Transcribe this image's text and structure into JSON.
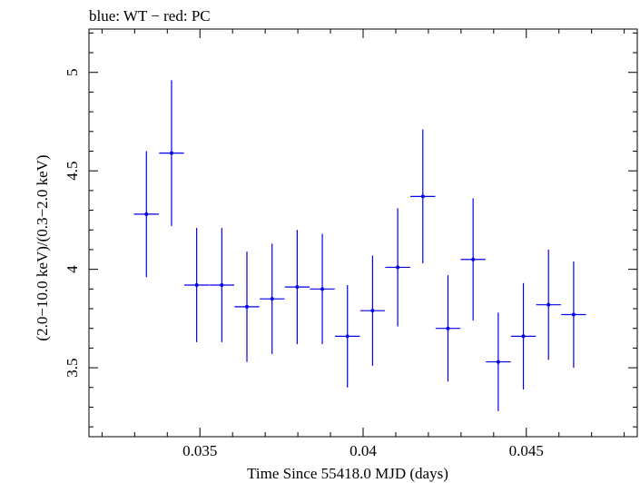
{
  "chart_data": {
    "type": "scatter",
    "title": "blue: WT − red: PC",
    "xlabel": "Time Since 55418.0 MJD (days)",
    "ylabel": "(2.0−10.0 keV)/(0.3−2.0 keV)",
    "xlim": [
      0.0316,
      0.0484
    ],
    "ylim": [
      3.15,
      5.22
    ],
    "x_ticks": [
      0.035,
      0.04,
      0.045
    ],
    "x_tick_labels": [
      "0.035",
      "0.04",
      "0.045"
    ],
    "x_minor_step": 0.001,
    "y_ticks": [
      3.5,
      4,
      4.5,
      5
    ],
    "y_tick_labels": [
      "3.5",
      "4",
      "4.5",
      "5"
    ],
    "y_minor_step": 0.1,
    "grid": false,
    "series": [
      {
        "color": "#0000ee",
        "points": [
          {
            "x": 0.03336,
            "y": 4.28,
            "xerr": 0.00038,
            "yerr_lo": 0.32,
            "yerr_hi": 0.32
          },
          {
            "x": 0.03413,
            "y": 4.59,
            "xerr": 0.00038,
            "yerr_lo": 0.37,
            "yerr_hi": 0.37
          },
          {
            "x": 0.0349,
            "y": 3.92,
            "xerr": 0.00038,
            "yerr_lo": 0.29,
            "yerr_hi": 0.29
          },
          {
            "x": 0.03567,
            "y": 3.92,
            "xerr": 0.00038,
            "yerr_lo": 0.29,
            "yerr_hi": 0.29
          },
          {
            "x": 0.03644,
            "y": 3.81,
            "xerr": 0.00038,
            "yerr_lo": 0.28,
            "yerr_hi": 0.28
          },
          {
            "x": 0.03721,
            "y": 3.85,
            "xerr": 0.00038,
            "yerr_lo": 0.28,
            "yerr_hi": 0.28
          },
          {
            "x": 0.03798,
            "y": 3.91,
            "xerr": 0.00038,
            "yerr_lo": 0.29,
            "yerr_hi": 0.29
          },
          {
            "x": 0.03875,
            "y": 3.9,
            "xerr": 0.00038,
            "yerr_lo": 0.28,
            "yerr_hi": 0.28
          },
          {
            "x": 0.03952,
            "y": 3.66,
            "xerr": 0.00038,
            "yerr_lo": 0.26,
            "yerr_hi": 0.26
          },
          {
            "x": 0.04029,
            "y": 3.79,
            "xerr": 0.00038,
            "yerr_lo": 0.28,
            "yerr_hi": 0.28
          },
          {
            "x": 0.04106,
            "y": 4.01,
            "xerr": 0.00038,
            "yerr_lo": 0.3,
            "yerr_hi": 0.3
          },
          {
            "x": 0.04183,
            "y": 4.37,
            "xerr": 0.00038,
            "yerr_lo": 0.34,
            "yerr_hi": 0.34
          },
          {
            "x": 0.0426,
            "y": 3.7,
            "xerr": 0.00038,
            "yerr_lo": 0.27,
            "yerr_hi": 0.27
          },
          {
            "x": 0.04337,
            "y": 4.05,
            "xerr": 0.00038,
            "yerr_lo": 0.31,
            "yerr_hi": 0.31
          },
          {
            "x": 0.04414,
            "y": 3.53,
            "xerr": 0.00038,
            "yerr_lo": 0.25,
            "yerr_hi": 0.25
          },
          {
            "x": 0.04491,
            "y": 3.66,
            "xerr": 0.00038,
            "yerr_lo": 0.27,
            "yerr_hi": 0.27
          },
          {
            "x": 0.04568,
            "y": 3.82,
            "xerr": 0.00038,
            "yerr_lo": 0.28,
            "yerr_hi": 0.28
          },
          {
            "x": 0.04645,
            "y": 3.77,
            "xerr": 0.00038,
            "yerr_lo": 0.27,
            "yerr_hi": 0.27
          }
        ]
      }
    ]
  }
}
